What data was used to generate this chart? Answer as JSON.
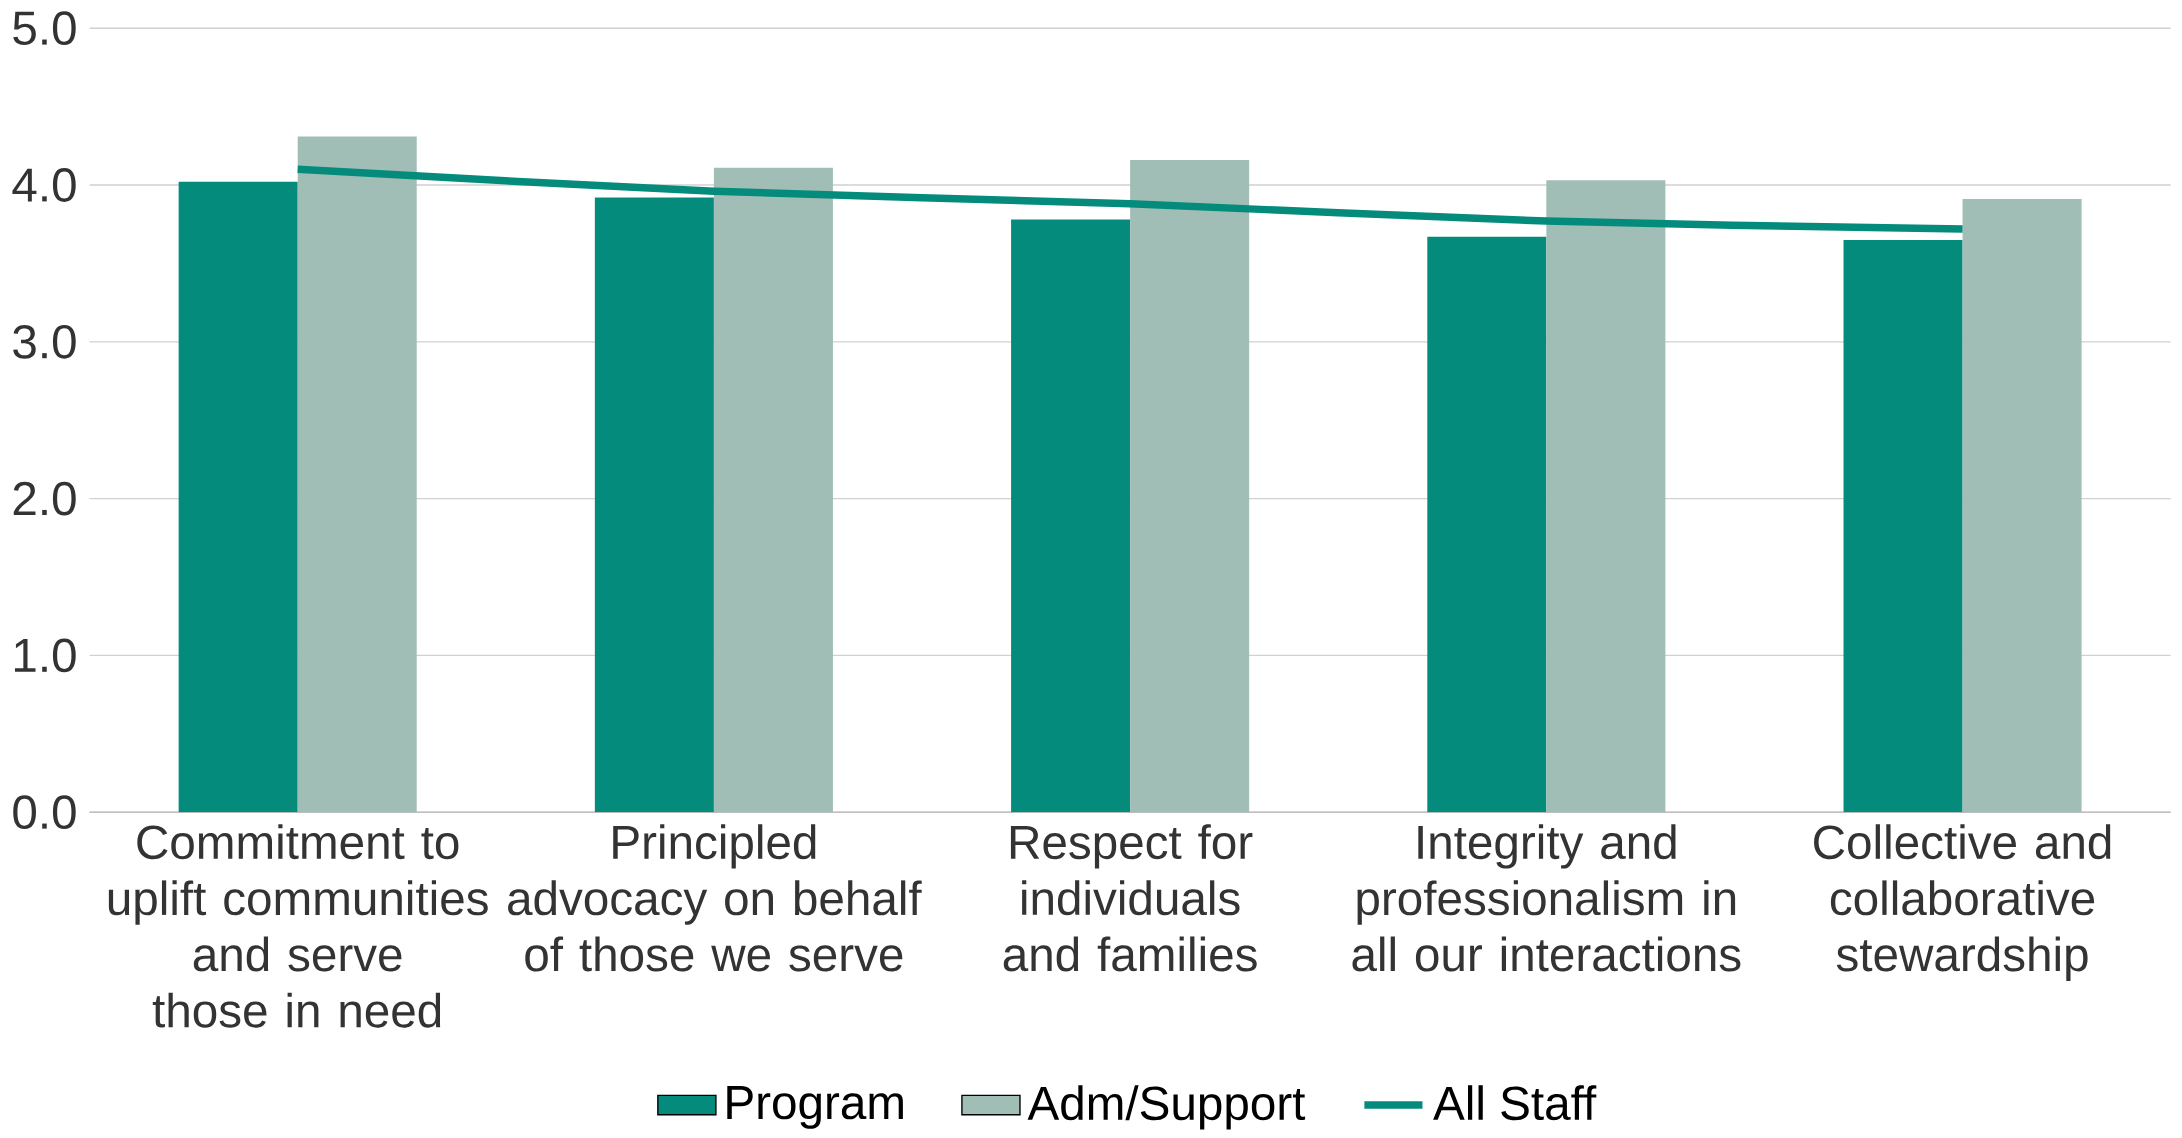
{
  "chart_data": {
    "type": "bar",
    "categories": [
      "Commitment to uplift communities and serve those in need",
      "Principled advocacy on behalf of those we serve",
      "Respect for individuals and families",
      "Integrity and professionalism in all our interactions",
      "Collective and collaborative stewardship"
    ],
    "series": [
      {
        "name": "Program",
        "color": "#058b7c",
        "values": [
          4.02,
          3.92,
          3.78,
          3.67,
          3.65
        ]
      },
      {
        "name": "Adm/Support",
        "color": "#a0beb6",
        "values": [
          4.31,
          4.11,
          4.16,
          4.03,
          3.91
        ]
      },
      {
        "name": "All Staff",
        "type": "line",
        "color": "#058b7c",
        "values": [
          4.1,
          3.96,
          3.88,
          3.77,
          3.72
        ]
      }
    ],
    "ylim": [
      0,
      5
    ],
    "yticks": [
      {
        "value": 0,
        "label": "0.0"
      },
      {
        "value": 1,
        "label": "1.0"
      },
      {
        "value": 2,
        "label": "2.0"
      },
      {
        "value": 3,
        "label": "3.0"
      },
      {
        "value": 4,
        "label": "4.0"
      },
      {
        "value": 5,
        "label": "5.0"
      }
    ],
    "grid": "y",
    "legend": "bottom",
    "marker": "none"
  }
}
